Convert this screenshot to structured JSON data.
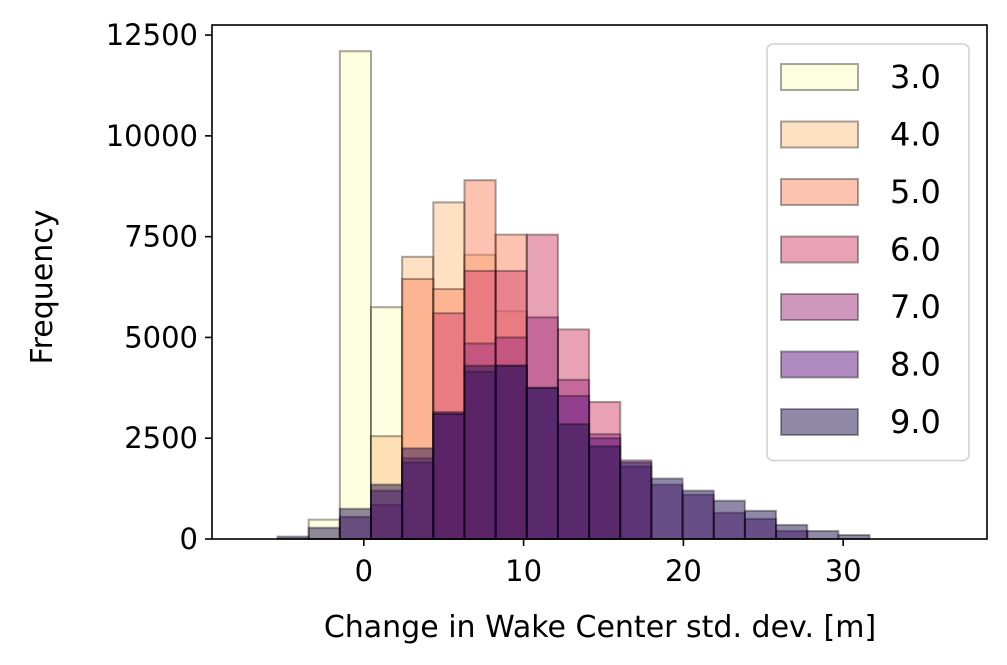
{
  "chart_data": {
    "type": "bar",
    "subtype": "overlapping-histogram",
    "title": "",
    "xlabel": "Change in Wake Center std. dev. [m]",
    "ylabel": "Frequency",
    "xlim": [
      -9.5,
      39
    ],
    "ylim": [
      0,
      12750
    ],
    "xticks": [
      0,
      10,
      20,
      30
    ],
    "yticks": [
      0,
      2500,
      5000,
      7500,
      10000,
      12500
    ],
    "bin_width": 1.95,
    "bin_starts": [
      -5.4,
      -3.45,
      -1.5,
      0.45,
      2.4,
      4.35,
      6.3,
      8.25,
      10.2,
      12.15,
      14.1,
      16.05,
      18.0,
      19.95,
      21.9,
      23.85,
      25.8,
      27.75,
      29.7
    ],
    "legend_position": "upper-right",
    "series": [
      {
        "name": "3.0",
        "color": "#fcfdbf",
        "values": [
          0,
          480,
          12100,
          5750,
          0,
          0,
          0,
          0,
          0,
          0,
          0,
          0,
          0,
          0,
          0,
          0,
          0,
          0,
          0
        ]
      },
      {
        "name": "4.0",
        "color": "#fec287",
        "values": [
          0,
          0,
          0,
          2550,
          7000,
          8350,
          7050,
          5650,
          0,
          0,
          0,
          0,
          0,
          0,
          0,
          0,
          0,
          0,
          0
        ]
      },
      {
        "name": "5.0",
        "color": "#fb8761",
        "values": [
          0,
          0,
          0,
          0,
          6450,
          6200,
          8900,
          7550,
          0,
          0,
          0,
          0,
          0,
          0,
          0,
          0,
          0,
          0,
          0
        ]
      },
      {
        "name": "6.0",
        "color": "#d3436e",
        "values": [
          0,
          0,
          0,
          0,
          0,
          5600,
          6650,
          6650,
          7550,
          5200,
          3400,
          0,
          0,
          0,
          0,
          0,
          0,
          0,
          0
        ]
      },
      {
        "name": "7.0",
        "color": "#a2307e",
        "values": [
          0,
          0,
          0,
          850,
          2000,
          3100,
          4850,
          5000,
          5500,
          3950,
          2600,
          1950,
          0,
          0,
          0,
          0,
          0,
          0,
          0
        ]
      },
      {
        "name": "8.0",
        "color": "#5f187f",
        "values": [
          0,
          0,
          550,
          1200,
          1900,
          3150,
          4150,
          4300,
          3750,
          3550,
          2500,
          1800,
          1350,
          1100,
          650,
          500,
          200,
          0,
          0
        ]
      },
      {
        "name": "9.0",
        "color": "#221150",
        "values": [
          60,
          280,
          750,
          1350,
          2250,
          3100,
          4300,
          4300,
          3750,
          2850,
          2300,
          1900,
          1500,
          1200,
          950,
          700,
          350,
          200,
          100
        ]
      }
    ]
  }
}
